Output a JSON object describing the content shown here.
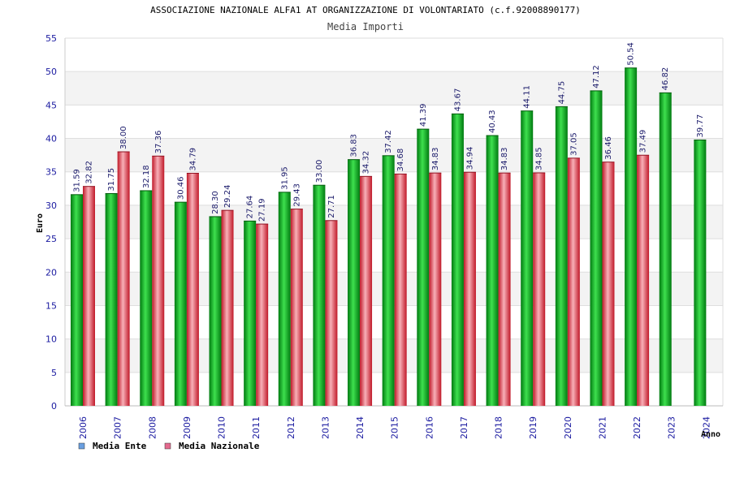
{
  "chart_data": {
    "type": "bar",
    "title": "ASSOCIAZIONE NAZIONALE ALFA1 AT ORGANIZZAZIONE DI VOLONTARIATO (c.f.92008890177)",
    "subtitle": "Media Importi",
    "xlabel": "Anno",
    "ylabel": "Euro",
    "ylim": [
      0,
      55
    ],
    "yticks": [
      0,
      5,
      10,
      15,
      20,
      25,
      30,
      35,
      40,
      45,
      50,
      55
    ],
    "grid": true,
    "legend_position": "bottom-left",
    "categories": [
      "2006",
      "2007",
      "2008",
      "2009",
      "2010",
      "2011",
      "2012",
      "2013",
      "2014",
      "2015",
      "2016",
      "2017",
      "2018",
      "2019",
      "2020",
      "2021",
      "2022",
      "2023",
      "2024"
    ],
    "series": [
      {
        "name": "Media Ente",
        "values": [
          31.59,
          31.75,
          32.18,
          30.46,
          28.3,
          27.64,
          31.95,
          33.0,
          36.83,
          37.42,
          41.39,
          43.67,
          40.43,
          44.11,
          44.75,
          47.12,
          50.54,
          46.82,
          39.77
        ],
        "labels": [
          "31.59",
          "31.75",
          "32.18",
          "30.46",
          "28.30",
          "27.64",
          "31.95",
          "33.00",
          "36.83",
          "37.42",
          "41.39",
          "43.67",
          "40.43",
          "44.11",
          "44.75",
          "47.12",
          "50.54",
          "46.82",
          "39.77"
        ],
        "legend_color": "#6a9fe0",
        "dark": "#007a10",
        "light": "#3ee04e"
      },
      {
        "name": "Media Nazionale",
        "values": [
          32.82,
          38.0,
          37.36,
          34.79,
          29.24,
          27.19,
          29.43,
          27.71,
          34.32,
          34.68,
          34.83,
          34.94,
          34.83,
          34.85,
          37.05,
          36.46,
          37.49,
          null,
          null
        ],
        "labels": [
          "32.82",
          "38.00",
          "37.36",
          "34.79",
          "29.24",
          "27.19",
          "29.43",
          "27.71",
          "34.32",
          "34.68",
          "34.83",
          "34.94",
          "34.83",
          "34.85",
          "37.05",
          "36.46",
          "37.49",
          null,
          null
        ],
        "legend_color": "#e46a8e",
        "dark": "#c01828",
        "light": "#f59aa4"
      }
    ]
  }
}
